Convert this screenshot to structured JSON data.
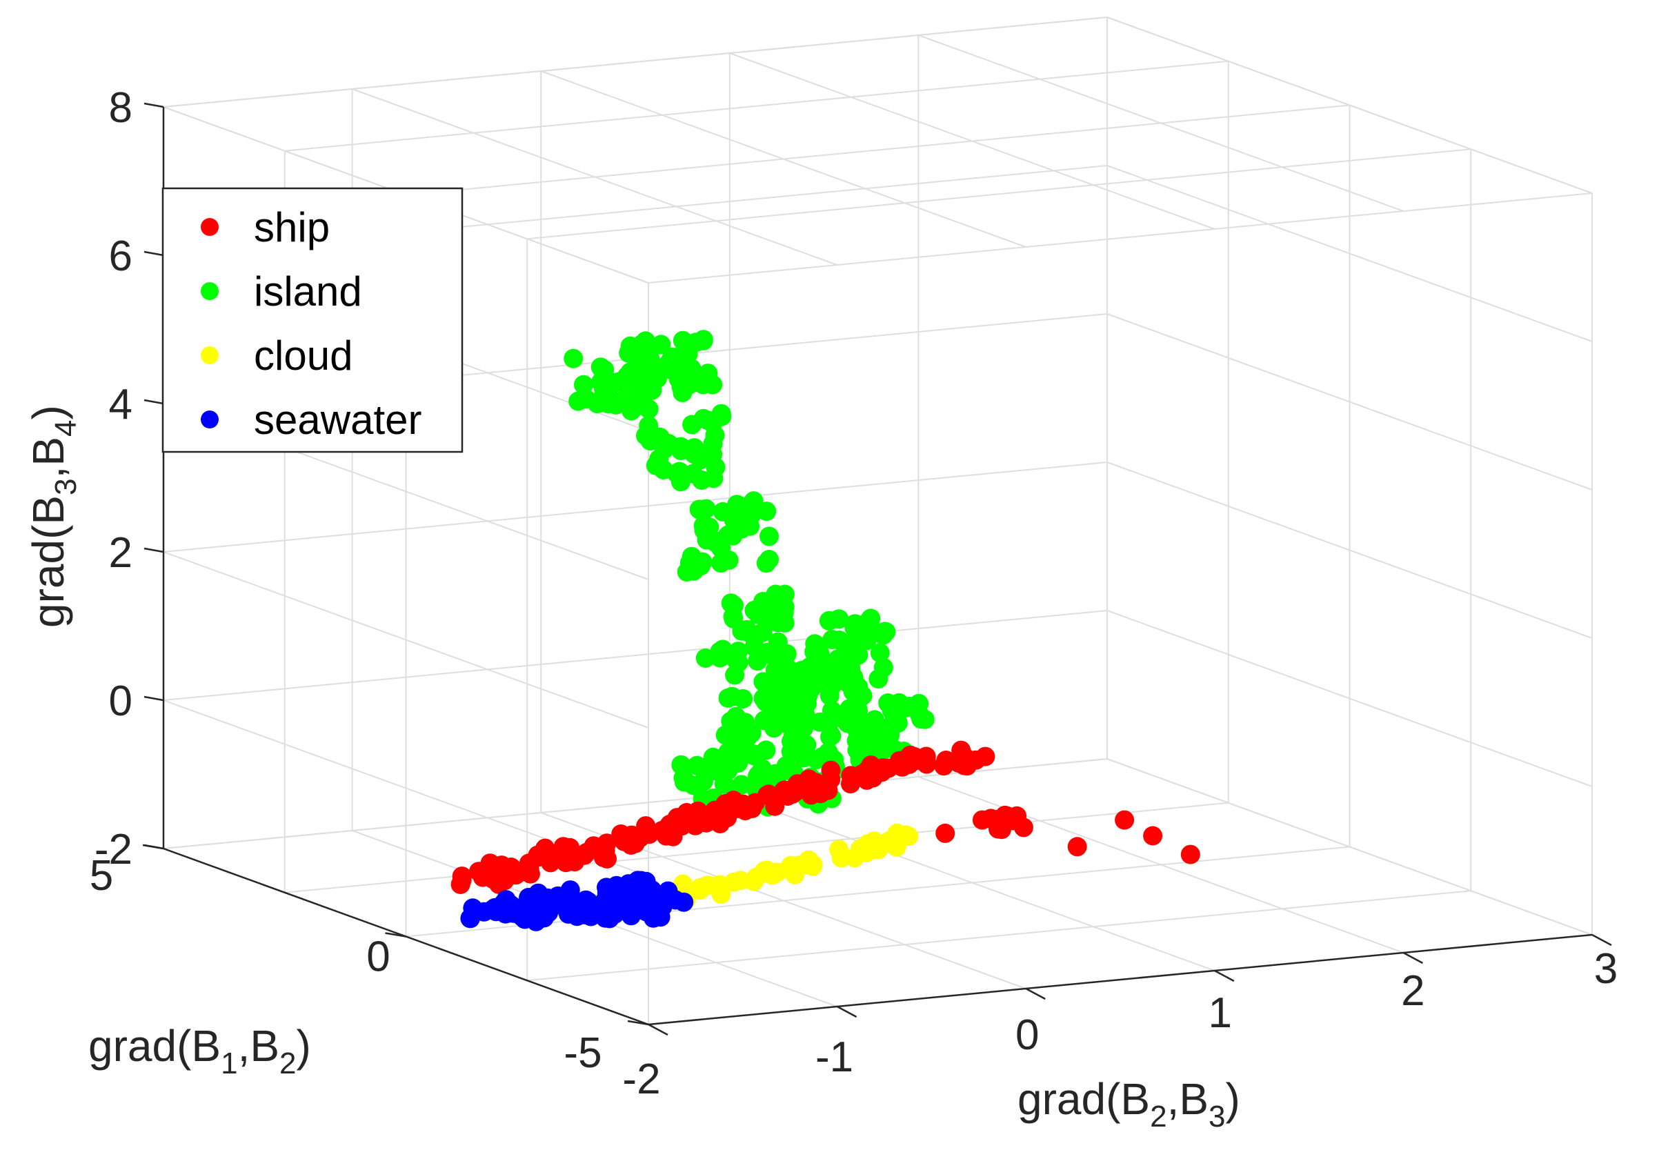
{
  "chart_data": {
    "type": "scatter",
    "dimensions": 3,
    "xlabel": "grad(B2,B3)",
    "ylabel": "grad(B1,B2)",
    "zlabel": "grad(B3,B4)",
    "axis_label_parts": {
      "x": [
        "grad(B",
        "2",
        ",B",
        "3",
        ")"
      ],
      "y": [
        "grad(B",
        "1",
        ",B",
        "2",
        ")"
      ],
      "z": [
        "grad(B",
        "3",
        ",B",
        "4",
        ")"
      ]
    },
    "xlim": [
      -2,
      3
    ],
    "ylim": [
      -5,
      5
    ],
    "zlim": [
      -2,
      8
    ],
    "xticks": [
      "-2",
      "-1",
      "0",
      "1",
      "2",
      "3"
    ],
    "yticks": [
      "-5",
      "0",
      "5"
    ],
    "zticks": [
      "-2",
      "0",
      "2",
      "4",
      "6",
      "8"
    ],
    "grid": true,
    "legend_position": "top-left",
    "series": [
      {
        "name": "ship",
        "color": "#ff0000",
        "note": "dense band near z = -1 spanning x -2 to 1.2; scattered outliers at x 0.5–1.9",
        "points": [
          [
            -1.85,
            -1.0,
            -1.0
          ],
          [
            -1.7,
            -1.0,
            -0.9
          ],
          [
            -1.5,
            -1.0,
            -0.8
          ],
          [
            -1.3,
            -1.0,
            -0.8
          ],
          [
            -1.1,
            -1.0,
            -0.7
          ],
          [
            -0.9,
            -1.0,
            -0.6
          ],
          [
            -0.7,
            -1.0,
            -0.5
          ],
          [
            -0.5,
            -1.0,
            -0.4
          ],
          [
            -0.3,
            -1.0,
            -0.3
          ],
          [
            -0.1,
            -1.0,
            -0.2
          ],
          [
            0.1,
            -1.0,
            -0.1
          ],
          [
            0.3,
            -1.0,
            -0.05
          ],
          [
            0.5,
            -1.0,
            0.0
          ],
          [
            0.7,
            -1.0,
            0.0
          ],
          [
            0.6,
            -1.0,
            -1.0
          ],
          [
            0.9,
            -1.0,
            -0.95
          ],
          [
            1.3,
            -1.0,
            -1.35
          ],
          [
            1.9,
            -1.0,
            -1.6
          ],
          [
            1.7,
            -1.0,
            -1.3
          ],
          [
            1.55,
            -1.0,
            -1.05
          ]
        ]
      },
      {
        "name": "island",
        "color": "#00ff00",
        "note": "large cloud rising from near z = -0.5 up to z ≈ 5.6 toward negative x",
        "points": [
          [
            -1.15,
            -1.0,
            5.5
          ],
          [
            -0.85,
            -1.0,
            5.6
          ],
          [
            -0.8,
            -1.0,
            4.5
          ],
          [
            -0.55,
            -1.0,
            3.3
          ],
          [
            -0.45,
            -1.0,
            2.0
          ],
          [
            -0.35,
            -1.0,
            1.0
          ],
          [
            0.0,
            -1.0,
            0.8
          ],
          [
            0.3,
            -1.0,
            0.5
          ],
          [
            -0.6,
            -1.0,
            0.2
          ],
          [
            -0.2,
            -1.0,
            0.0
          ],
          [
            0.1,
            -1.0,
            1.6
          ],
          [
            -0.1,
            -1.0,
            1.2
          ]
        ]
      },
      {
        "name": "cloud",
        "color": "#ffff00",
        "note": "thin strip beneath ship band",
        "points": [
          [
            -0.7,
            -1.0,
            -1.45
          ],
          [
            -0.4,
            -1.0,
            -1.35
          ],
          [
            -0.1,
            -1.0,
            -1.25
          ],
          [
            0.15,
            -1.0,
            -1.1
          ],
          [
            0.3,
            -1.0,
            -1.05
          ]
        ]
      },
      {
        "name": "seawater",
        "color": "#0000ff",
        "note": "compact cluster at bottom-left, z ≈ -1.5",
        "points": [
          [
            -1.8,
            -1.0,
            -1.45
          ],
          [
            -1.6,
            -1.0,
            -1.55
          ],
          [
            -1.4,
            -1.0,
            -1.55
          ],
          [
            -1.2,
            -1.0,
            -1.6
          ],
          [
            -1.0,
            -1.0,
            -1.65
          ],
          [
            -0.9,
            -1.0,
            -1.5
          ],
          [
            -1.1,
            -1.0,
            -1.35
          ],
          [
            -1.5,
            -1.0,
            -1.4
          ]
        ]
      }
    ]
  }
}
